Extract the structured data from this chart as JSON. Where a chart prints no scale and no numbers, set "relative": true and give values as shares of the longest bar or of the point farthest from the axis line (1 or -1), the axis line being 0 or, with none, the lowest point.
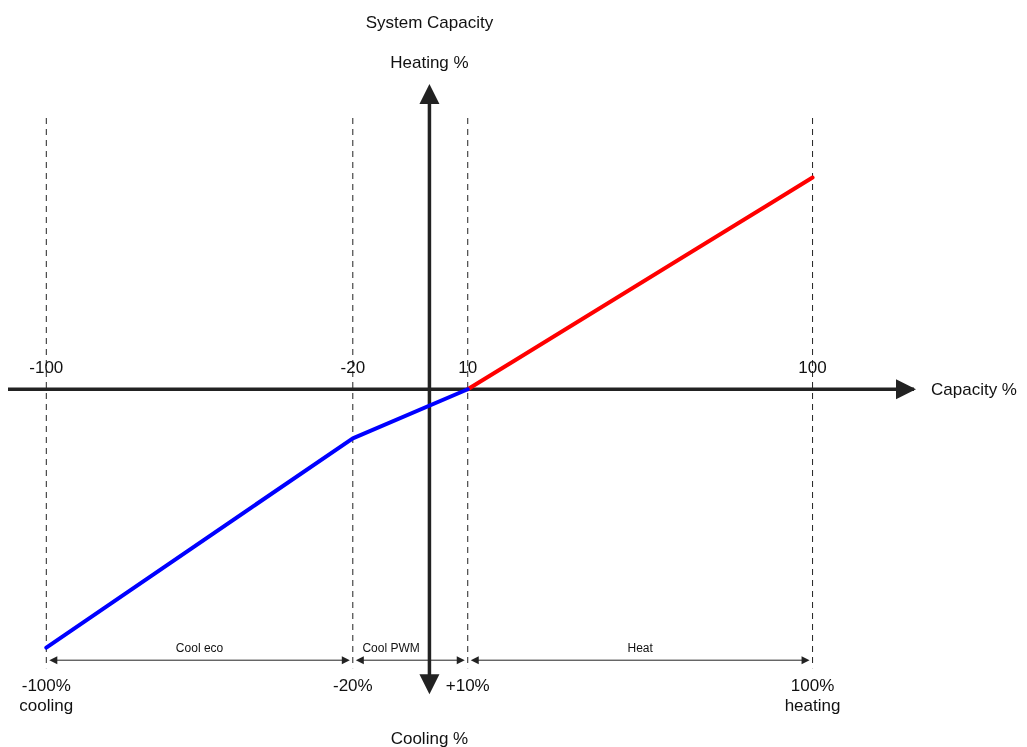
{
  "chart_data": {
    "type": "line",
    "title": "System Capacity",
    "annotations": [
      "Capacity %",
      "Heating %",
      "Cooling %",
      "Cool eco",
      "Cool PWM",
      "Heat"
    ],
    "relative": true,
    "xlim": [
      -110,
      127
    ],
    "xticks": [
      {
        "value": -100,
        "label": "-100%\ncooling"
      },
      {
        "value": -20,
        "label": "-20%"
      },
      {
        "value": 10,
        "label": "+10%"
      },
      {
        "value": 100,
        "label": "100%\nheating"
      }
    ],
    "x2lim": [
      -110,
      127
    ],
    "x2ticks": [
      -100,
      -20,
      10,
      100
    ],
    "series": [
      {
        "color": "#0000ff",
        "x": [
          -100,
          -20,
          10
        ],
        "values": [
          -1,
          -0.19,
          0
        ]
      },
      {
        "color": "#ff0000",
        "x": [
          10,
          100
        ],
        "values": [
          0,
          0.82
        ]
      }
    ],
    "ref_lines": [
      {
        "axis": "x",
        "value": -100,
        "line_style": "dashed",
        "color": "#222222"
      },
      {
        "axis": "x",
        "value": -20,
        "line_style": "dashed",
        "color": "#222222"
      },
      {
        "axis": "x",
        "value": 10,
        "line_style": "dashed",
        "color": "#222222"
      },
      {
        "axis": "x",
        "value": 100,
        "line_style": "dashed",
        "color": "#222222"
      }
    ]
  }
}
